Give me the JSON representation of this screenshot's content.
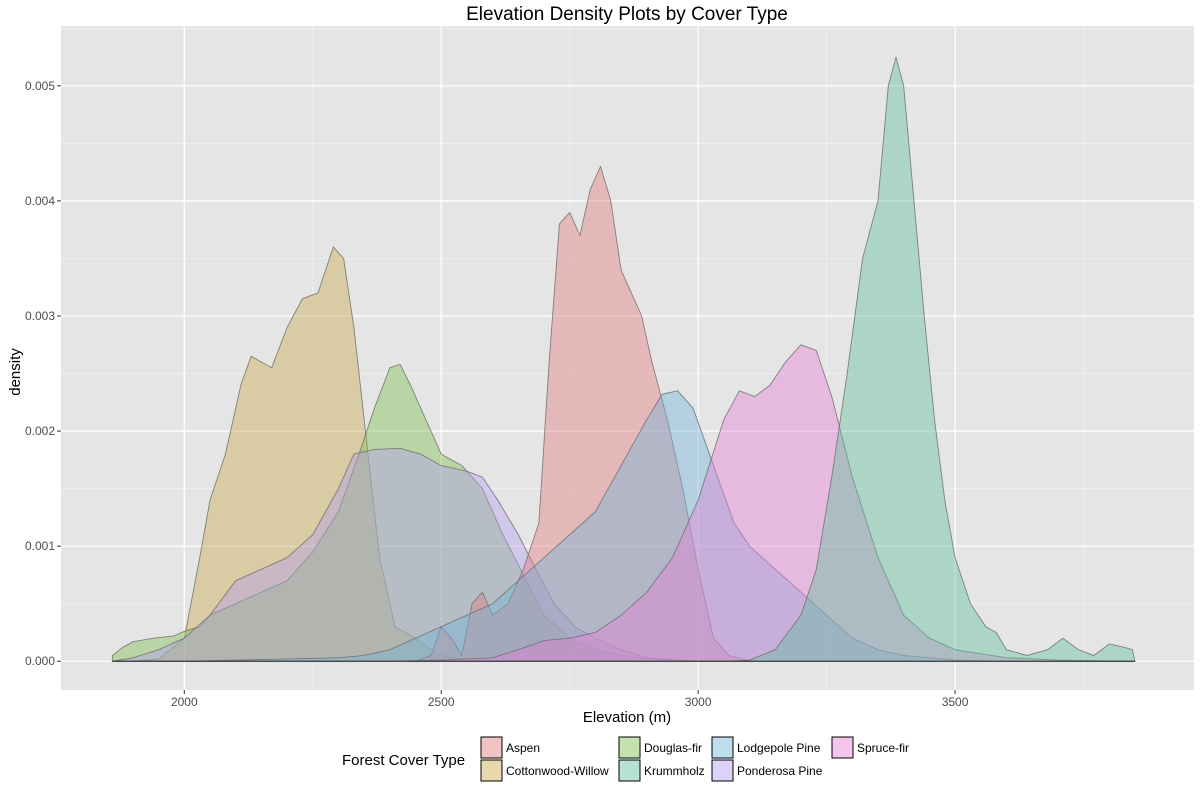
{
  "chart_data": {
    "type": "area",
    "title": "Elevation Density Plots by Cover Type",
    "xlabel": "Elevation (m)",
    "ylabel": "density",
    "xlim": [
      1760,
      3965
    ],
    "ylim": [
      -0.00025,
      0.00552
    ],
    "x_ticks": [
      2000,
      2500,
      3000,
      3500
    ],
    "x_tick_labels": [
      "2000",
      "2500",
      "3000",
      "3500"
    ],
    "y_ticks": [
      0,
      0.001,
      0.002,
      0.003,
      0.004,
      0.005
    ],
    "y_tick_labels": [
      "0.000",
      "0.001",
      "0.002",
      "0.003",
      "0.004",
      "0.005"
    ],
    "grid": true,
    "legend": {
      "title": "Forest Cover Type",
      "position": "bottom",
      "rows": [
        [
          "Aspen",
          "Douglas-fir",
          "Lodgepole Pine",
          "Spruce-fir"
        ],
        [
          "Cottonwood-Willow",
          "Krummholz",
          "Ponderosa Pine"
        ]
      ]
    },
    "series": [
      {
        "name": "Cottonwood-Willow",
        "color": "#c9a84a",
        "points": [
          [
            1860,
            0
          ],
          [
            1900,
            0
          ],
          [
            1950,
            2e-05
          ],
          [
            2000,
            0.0002
          ],
          [
            2030,
            0.0009
          ],
          [
            2050,
            0.0014
          ],
          [
            2080,
            0.0018
          ],
          [
            2110,
            0.0024
          ],
          [
            2130,
            0.00265
          ],
          [
            2150,
            0.0026
          ],
          [
            2170,
            0.00255
          ],
          [
            2200,
            0.0029
          ],
          [
            2230,
            0.00315
          ],
          [
            2260,
            0.0032
          ],
          [
            2290,
            0.0036
          ],
          [
            2310,
            0.0035
          ],
          [
            2330,
            0.0029
          ],
          [
            2350,
            0.0021
          ],
          [
            2380,
            0.0009
          ],
          [
            2410,
            0.0003
          ],
          [
            2430,
            0.00025
          ],
          [
            2450,
            0.0002
          ],
          [
            2480,
            0.0001
          ],
          [
            2500,
            5e-05
          ],
          [
            2550,
            1e-05
          ],
          [
            2600,
            0
          ],
          [
            3850,
            0
          ]
        ]
      },
      {
        "name": "Douglas-fir",
        "color": "#7cbf4e",
        "points": [
          [
            1860,
            5e-05
          ],
          [
            1880,
            0.00012
          ],
          [
            1900,
            0.00017
          ],
          [
            1940,
            0.0002
          ],
          [
            1980,
            0.00022
          ],
          [
            2000,
            0.00026
          ],
          [
            2030,
            0.0003
          ],
          [
            2050,
            0.0004
          ],
          [
            2100,
            0.0005
          ],
          [
            2150,
            0.0006
          ],
          [
            2200,
            0.0007
          ],
          [
            2250,
            0.00095
          ],
          [
            2300,
            0.0013
          ],
          [
            2340,
            0.0018
          ],
          [
            2370,
            0.0022
          ],
          [
            2400,
            0.00255
          ],
          [
            2420,
            0.00258
          ],
          [
            2440,
            0.0024
          ],
          [
            2470,
            0.0021
          ],
          [
            2500,
            0.0018
          ],
          [
            2540,
            0.0017
          ],
          [
            2580,
            0.0015
          ],
          [
            2620,
            0.0011
          ],
          [
            2660,
            0.00075
          ],
          [
            2700,
            0.0004
          ],
          [
            2750,
            0.0002
          ],
          [
            2800,
            0.0001
          ],
          [
            2850,
            5e-05
          ],
          [
            2900,
            2e-05
          ],
          [
            3000,
            0
          ],
          [
            3850,
            0
          ]
        ]
      },
      {
        "name": "Ponderosa Pine",
        "color": "#b39df0",
        "points": [
          [
            1860,
            0
          ],
          [
            1900,
            3e-05
          ],
          [
            1950,
            0.0001
          ],
          [
            2000,
            0.0002
          ],
          [
            2050,
            0.0004
          ],
          [
            2100,
            0.0007
          ],
          [
            2150,
            0.0008
          ],
          [
            2200,
            0.0009
          ],
          [
            2250,
            0.0011
          ],
          [
            2300,
            0.0015
          ],
          [
            2330,
            0.0018
          ],
          [
            2370,
            0.00184
          ],
          [
            2420,
            0.00185
          ],
          [
            2460,
            0.0018
          ],
          [
            2500,
            0.0017
          ],
          [
            2550,
            0.00165
          ],
          [
            2580,
            0.0016
          ],
          [
            2610,
            0.0014
          ],
          [
            2650,
            0.0011
          ],
          [
            2690,
            0.00075
          ],
          [
            2720,
            0.0005
          ],
          [
            2760,
            0.0003
          ],
          [
            2800,
            0.0002
          ],
          [
            2850,
            0.0001
          ],
          [
            2900,
            3e-05
          ],
          [
            3000,
            0
          ],
          [
            3850,
            0
          ]
        ]
      },
      {
        "name": "Aspen",
        "color": "#e37a7a",
        "points": [
          [
            1860,
            0
          ],
          [
            2450,
            0
          ],
          [
            2480,
            5e-05
          ],
          [
            2500,
            0.0003
          ],
          [
            2520,
            0.0002
          ],
          [
            2540,
            5e-05
          ],
          [
            2560,
            0.0005
          ],
          [
            2580,
            0.0006
          ],
          [
            2600,
            0.0004
          ],
          [
            2630,
            0.0005
          ],
          [
            2660,
            0.0008
          ],
          [
            2690,
            0.0012
          ],
          [
            2710,
            0.0026
          ],
          [
            2730,
            0.0038
          ],
          [
            2750,
            0.0039
          ],
          [
            2770,
            0.0037
          ],
          [
            2790,
            0.0041
          ],
          [
            2810,
            0.0043
          ],
          [
            2830,
            0.004
          ],
          [
            2850,
            0.0034
          ],
          [
            2870,
            0.0032
          ],
          [
            2890,
            0.003
          ],
          [
            2910,
            0.0026
          ],
          [
            2940,
            0.0021
          ],
          [
            2970,
            0.0015
          ],
          [
            3000,
            0.0008
          ],
          [
            3030,
            0.0002
          ],
          [
            3060,
            5e-05
          ],
          [
            3100,
            0
          ],
          [
            3850,
            0
          ]
        ]
      },
      {
        "name": "Lodgepole Pine",
        "color": "#6fb3d8",
        "points": [
          [
            1860,
            0
          ],
          [
            2000,
            0
          ],
          [
            2100,
            1e-05
          ],
          [
            2200,
            2e-05
          ],
          [
            2300,
            3e-05
          ],
          [
            2350,
            5e-05
          ],
          [
            2400,
            0.0001
          ],
          [
            2450,
            0.0002
          ],
          [
            2500,
            0.0003
          ],
          [
            2550,
            0.0004
          ],
          [
            2600,
            0.0005
          ],
          [
            2650,
            0.0007
          ],
          [
            2700,
            0.0009
          ],
          [
            2750,
            0.0011
          ],
          [
            2800,
            0.0013
          ],
          [
            2850,
            0.0017
          ],
          [
            2900,
            0.0021
          ],
          [
            2930,
            0.00232
          ],
          [
            2960,
            0.00235
          ],
          [
            2990,
            0.0022
          ],
          [
            3030,
            0.0017
          ],
          [
            3070,
            0.0012
          ],
          [
            3100,
            0.001
          ],
          [
            3150,
            0.0008
          ],
          [
            3200,
            0.0006
          ],
          [
            3250,
            0.0004
          ],
          [
            3300,
            0.0002
          ],
          [
            3350,
            0.0001
          ],
          [
            3400,
            5e-05
          ],
          [
            3500,
            1e-05
          ],
          [
            3600,
            0
          ],
          [
            3850,
            0
          ]
        ]
      },
      {
        "name": "Spruce-fir",
        "color": "#e57fd4",
        "points": [
          [
            1860,
            0
          ],
          [
            2400,
            0
          ],
          [
            2500,
            1e-05
          ],
          [
            2600,
            3e-05
          ],
          [
            2650,
            0.0001
          ],
          [
            2700,
            0.00018
          ],
          [
            2750,
            0.0002
          ],
          [
            2800,
            0.00025
          ],
          [
            2850,
            0.0004
          ],
          [
            2900,
            0.0006
          ],
          [
            2950,
            0.0009
          ],
          [
            3000,
            0.0014
          ],
          [
            3050,
            0.0021
          ],
          [
            3080,
            0.00235
          ],
          [
            3110,
            0.0023
          ],
          [
            3140,
            0.0024
          ],
          [
            3170,
            0.0026
          ],
          [
            3200,
            0.00275
          ],
          [
            3230,
            0.0027
          ],
          [
            3260,
            0.0023
          ],
          [
            3300,
            0.0016
          ],
          [
            3350,
            0.0009
          ],
          [
            3400,
            0.0004
          ],
          [
            3450,
            0.0002
          ],
          [
            3500,
            0.0001
          ],
          [
            3600,
            3e-05
          ],
          [
            3700,
            1e-05
          ],
          [
            3850,
            0
          ]
        ]
      },
      {
        "name": "Krummholz",
        "color": "#5dbf9c",
        "points": [
          [
            1860,
            0
          ],
          [
            3050,
            0
          ],
          [
            3100,
            1e-05
          ],
          [
            3150,
            0.0001
          ],
          [
            3200,
            0.0004
          ],
          [
            3230,
            0.0008
          ],
          [
            3260,
            0.0016
          ],
          [
            3290,
            0.0025
          ],
          [
            3320,
            0.0035
          ],
          [
            3350,
            0.004
          ],
          [
            3370,
            0.005
          ],
          [
            3385,
            0.00525
          ],
          [
            3400,
            0.005
          ],
          [
            3420,
            0.004
          ],
          [
            3440,
            0.003
          ],
          [
            3460,
            0.0021
          ],
          [
            3480,
            0.0014
          ],
          [
            3500,
            0.0009
          ],
          [
            3530,
            0.0005
          ],
          [
            3560,
            0.0003
          ],
          [
            3580,
            0.00025
          ],
          [
            3600,
            0.0001
          ],
          [
            3640,
            5e-05
          ],
          [
            3680,
            0.0001
          ],
          [
            3710,
            0.0002
          ],
          [
            3740,
            0.0001
          ],
          [
            3770,
            5e-05
          ],
          [
            3800,
            0.00015
          ],
          [
            3830,
            0.00012
          ],
          [
            3845,
            0.0001
          ],
          [
            3850,
            0
          ]
        ]
      }
    ]
  }
}
